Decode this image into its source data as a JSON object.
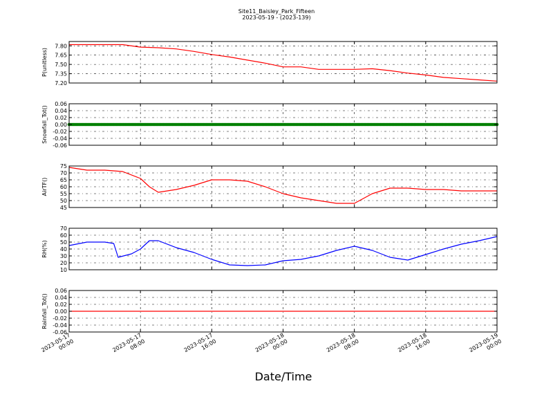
{
  "figure": {
    "title_line1": "Site11_Baisley_Park_Fifteen",
    "title_line2": "2023-05-19 - (2023-139)",
    "xlabel": "Date/Time"
  },
  "x_axis": {
    "ticks": [
      {
        "value": "2023-05-17 00:00",
        "line1": "2023-05-17",
        "line2": "00:00"
      },
      {
        "value": "2023-05-17 08:00",
        "line1": "2023-05-17",
        "line2": "08:00"
      },
      {
        "value": "2023-05-17 16:00",
        "line1": "2023-05-17",
        "line2": "16:00"
      },
      {
        "value": "2023-05-18 00:00",
        "line1": "2023-05-18",
        "line2": "00:00"
      },
      {
        "value": "2023-05-18 08:00",
        "line1": "2023-05-18",
        "line2": "08:00"
      },
      {
        "value": "2023-05-18 16:00",
        "line1": "2023-05-18",
        "line2": "16:00"
      },
      {
        "value": "2023-05-19 00:00",
        "line1": "2023-05-19",
        "line2": "00:00"
      }
    ],
    "range": [
      "2023-05-17 00:00",
      "2023-05-19 00:00"
    ]
  },
  "chart_data": [
    {
      "type": "line",
      "ylabel": "P(unitless)",
      "ylim": [
        7.2,
        7.87
      ],
      "yticks": [
        "7.80",
        "7.65",
        "7.50",
        "7.35",
        "7.20"
      ],
      "ytick_values": [
        7.8,
        7.65,
        7.5,
        7.35,
        7.2
      ],
      "grid": true,
      "color": "#ff0000",
      "x": [
        "2023-05-17 00:00",
        "2023-05-17 02:00",
        "2023-05-17 04:00",
        "2023-05-17 06:00",
        "2023-05-17 08:00",
        "2023-05-17 10:00",
        "2023-05-17 12:00",
        "2023-05-17 14:00",
        "2023-05-17 16:00",
        "2023-05-17 18:00",
        "2023-05-17 20:00",
        "2023-05-17 22:00",
        "2023-05-18 00:00",
        "2023-05-18 02:00",
        "2023-05-18 04:00",
        "2023-05-18 06:00",
        "2023-05-18 08:00",
        "2023-05-18 10:00",
        "2023-05-18 12:00",
        "2023-05-18 14:00",
        "2023-05-18 16:00",
        "2023-05-18 18:00",
        "2023-05-18 20:00",
        "2023-05-18 22:00",
        "2023-05-19 00:00"
      ],
      "values": [
        7.82,
        7.82,
        7.82,
        7.82,
        7.78,
        7.77,
        7.75,
        7.71,
        7.66,
        7.62,
        7.57,
        7.52,
        7.46,
        7.46,
        7.42,
        7.42,
        7.42,
        7.43,
        7.4,
        7.36,
        7.33,
        7.29,
        7.27,
        7.25,
        7.23
      ]
    },
    {
      "type": "scatter",
      "ylabel": "Snowfall_Tot()",
      "ylim": [
        -0.06,
        0.06
      ],
      "yticks": [
        "0.06",
        "0.04",
        "0.02",
        "0.00",
        "-0.02",
        "-0.04",
        "-0.06"
      ],
      "ytick_values": [
        0.06,
        0.04,
        0.02,
        0.0,
        -0.02,
        -0.04,
        -0.06
      ],
      "grid": true,
      "color": "#008000",
      "x_range": [
        "2023-05-17 00:00",
        "2023-05-19 00:00"
      ],
      "value": 0.0
    },
    {
      "type": "line",
      "ylabel": "AirTF()",
      "ylim": [
        45,
        75
      ],
      "yticks": [
        "75",
        "70",
        "65",
        "60",
        "55",
        "50",
        "45"
      ],
      "ytick_values": [
        75,
        70,
        65,
        60,
        55,
        50,
        45
      ],
      "grid": true,
      "color": "#ff0000",
      "x": [
        "2023-05-17 00:00",
        "2023-05-17 02:00",
        "2023-05-17 04:00",
        "2023-05-17 06:00",
        "2023-05-17 08:00",
        "2023-05-17 09:00",
        "2023-05-17 10:00",
        "2023-05-17 12:00",
        "2023-05-17 14:00",
        "2023-05-17 16:00",
        "2023-05-17 18:00",
        "2023-05-17 20:00",
        "2023-05-17 22:00",
        "2023-05-18 00:00",
        "2023-05-18 02:00",
        "2023-05-18 04:00",
        "2023-05-18 06:00",
        "2023-05-18 08:00",
        "2023-05-18 10:00",
        "2023-05-18 12:00",
        "2023-05-18 14:00",
        "2023-05-18 16:00",
        "2023-05-18 18:00",
        "2023-05-18 20:00",
        "2023-05-18 22:00",
        "2023-05-19 00:00"
      ],
      "values": [
        74,
        72,
        72,
        71,
        66,
        60,
        56,
        58,
        61,
        65,
        65,
        64,
        60,
        55,
        52,
        50,
        48,
        48,
        55,
        59,
        59,
        58,
        58,
        57,
        57,
        57
      ]
    },
    {
      "type": "line",
      "ylabel": "RH(%)",
      "ylim": [
        10,
        70
      ],
      "yticks": [
        "70",
        "60",
        "50",
        "40",
        "30",
        "20",
        "10"
      ],
      "ytick_values": [
        70,
        60,
        50,
        40,
        30,
        20,
        10
      ],
      "grid": true,
      "color": "#0000ff",
      "x": [
        "2023-05-17 00:00",
        "2023-05-17 02:00",
        "2023-05-17 04:00",
        "2023-05-17 05:00",
        "2023-05-17 05:30",
        "2023-05-17 07:00",
        "2023-05-17 08:00",
        "2023-05-17 09:00",
        "2023-05-17 10:00",
        "2023-05-17 12:00",
        "2023-05-17 14:00",
        "2023-05-17 16:00",
        "2023-05-17 18:00",
        "2023-05-17 20:00",
        "2023-05-17 22:00",
        "2023-05-18 00:00",
        "2023-05-18 02:00",
        "2023-05-18 04:00",
        "2023-05-18 06:00",
        "2023-05-18 08:00",
        "2023-05-18 10:00",
        "2023-05-18 12:00",
        "2023-05-18 14:00",
        "2023-05-18 16:00",
        "2023-05-18 18:00",
        "2023-05-18 20:00",
        "2023-05-18 22:00",
        "2023-05-19 00:00"
      ],
      "values": [
        45,
        50,
        50,
        48,
        28,
        33,
        40,
        52,
        52,
        42,
        35,
        25,
        17,
        16,
        17,
        23,
        25,
        30,
        38,
        44,
        38,
        28,
        24,
        32,
        40,
        47,
        52,
        58
      ]
    },
    {
      "type": "line",
      "ylabel": "Rainfall_Tot()",
      "ylim": [
        -0.06,
        0.06
      ],
      "yticks": [
        "0.06",
        "0.04",
        "0.02",
        "0.00",
        "-0.02",
        "-0.04",
        "-0.06"
      ],
      "ytick_values": [
        0.06,
        0.04,
        0.02,
        0.0,
        -0.02,
        -0.04,
        -0.06
      ],
      "grid": true,
      "color": "#ff0000",
      "x": [
        "2023-05-17 00:00",
        "2023-05-19 00:00"
      ],
      "values": [
        0.0,
        0.0
      ]
    }
  ]
}
